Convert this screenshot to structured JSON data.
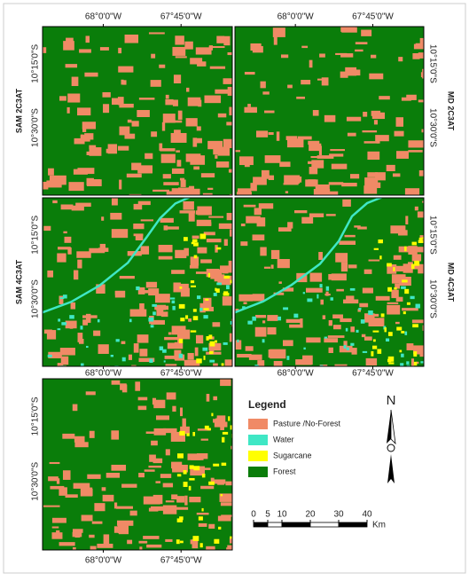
{
  "panels": [
    "SAM 2C3AT",
    "MD 2C3AT",
    "SAM 4C3AT",
    "MD 4C3AT"
  ],
  "coords": {
    "lon": [
      "68°0'0\"W",
      "67°45'0\"W"
    ],
    "lat": [
      "10°15'0\"S",
      "10°30'0\"S"
    ]
  },
  "legend": {
    "title": "Legend",
    "items": [
      {
        "label": "Pasture /No-Forest",
        "color": "#f08a66"
      },
      {
        "label": "Water",
        "color": "#3fe7c5"
      },
      {
        "label": "Sugarcane",
        "color": "#ffff00"
      },
      {
        "label": "Forest",
        "color": "#0a7d0a"
      }
    ]
  },
  "north": "N",
  "scale": {
    "ticks": [
      0,
      5,
      10,
      20,
      30,
      40
    ],
    "unit": "Km"
  }
}
